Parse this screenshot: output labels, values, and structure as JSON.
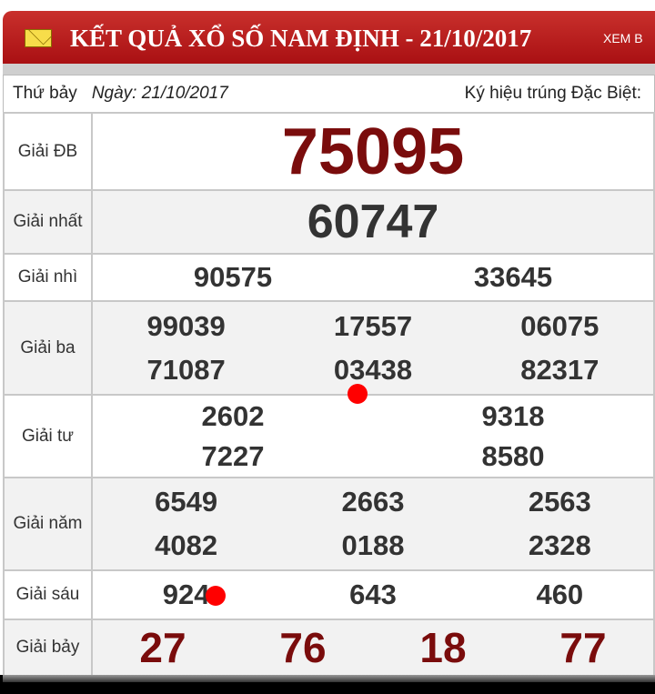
{
  "header": {
    "title": "KẾT QUẢ XỔ SỐ NAM ĐỊNH - 21/10/2017",
    "xem_label": "XEM B"
  },
  "info": {
    "weekday": "Thứ bảy",
    "date": "Ngày: 21/10/2017",
    "special_symbol_label": "Ký hiệu trúng Đặc Biệt:"
  },
  "prizes": [
    {
      "label": "Giải ĐB",
      "numbers": [
        "75095"
      ]
    },
    {
      "label": "Giải nhất",
      "numbers": [
        "60747"
      ]
    },
    {
      "label": "Giải nhì",
      "numbers": [
        "90575",
        "33645"
      ]
    },
    {
      "label": "Giải ba",
      "numbers": [
        "99039",
        "17557",
        "06075",
        "71087",
        "03438",
        "82317"
      ]
    },
    {
      "label": "Giải tư",
      "numbers": [
        "2602",
        "9318",
        "7227",
        "8580"
      ]
    },
    {
      "label": "Giải năm",
      "numbers": [
        "6549",
        "2663",
        "2563",
        "4082",
        "0188",
        "2328"
      ]
    },
    {
      "label": "Giải sáu",
      "numbers": [
        "924",
        "643",
        "460"
      ]
    },
    {
      "label": "Giải bảy",
      "numbers": [
        "27",
        "76",
        "18",
        "77"
      ]
    }
  ],
  "colors": {
    "header": "#b91c1c",
    "special": "#7a0c0c",
    "marker": "#ff0000"
  }
}
